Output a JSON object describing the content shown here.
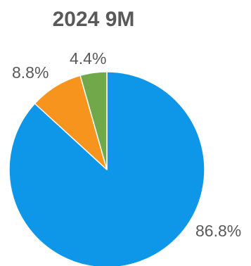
{
  "chart_data": {
    "type": "pie",
    "title": "2024 9M",
    "slices": [
      {
        "label": "86.8%",
        "value": 86.8,
        "color": "#0e96e8"
      },
      {
        "label": "8.8%",
        "value": 8.8,
        "color": "#f7941d"
      },
      {
        "label": "4.4%",
        "value": 4.4,
        "color": "#70a84a"
      }
    ],
    "start_angle_deg": 0,
    "direction": "clockwise",
    "legend": "none"
  }
}
